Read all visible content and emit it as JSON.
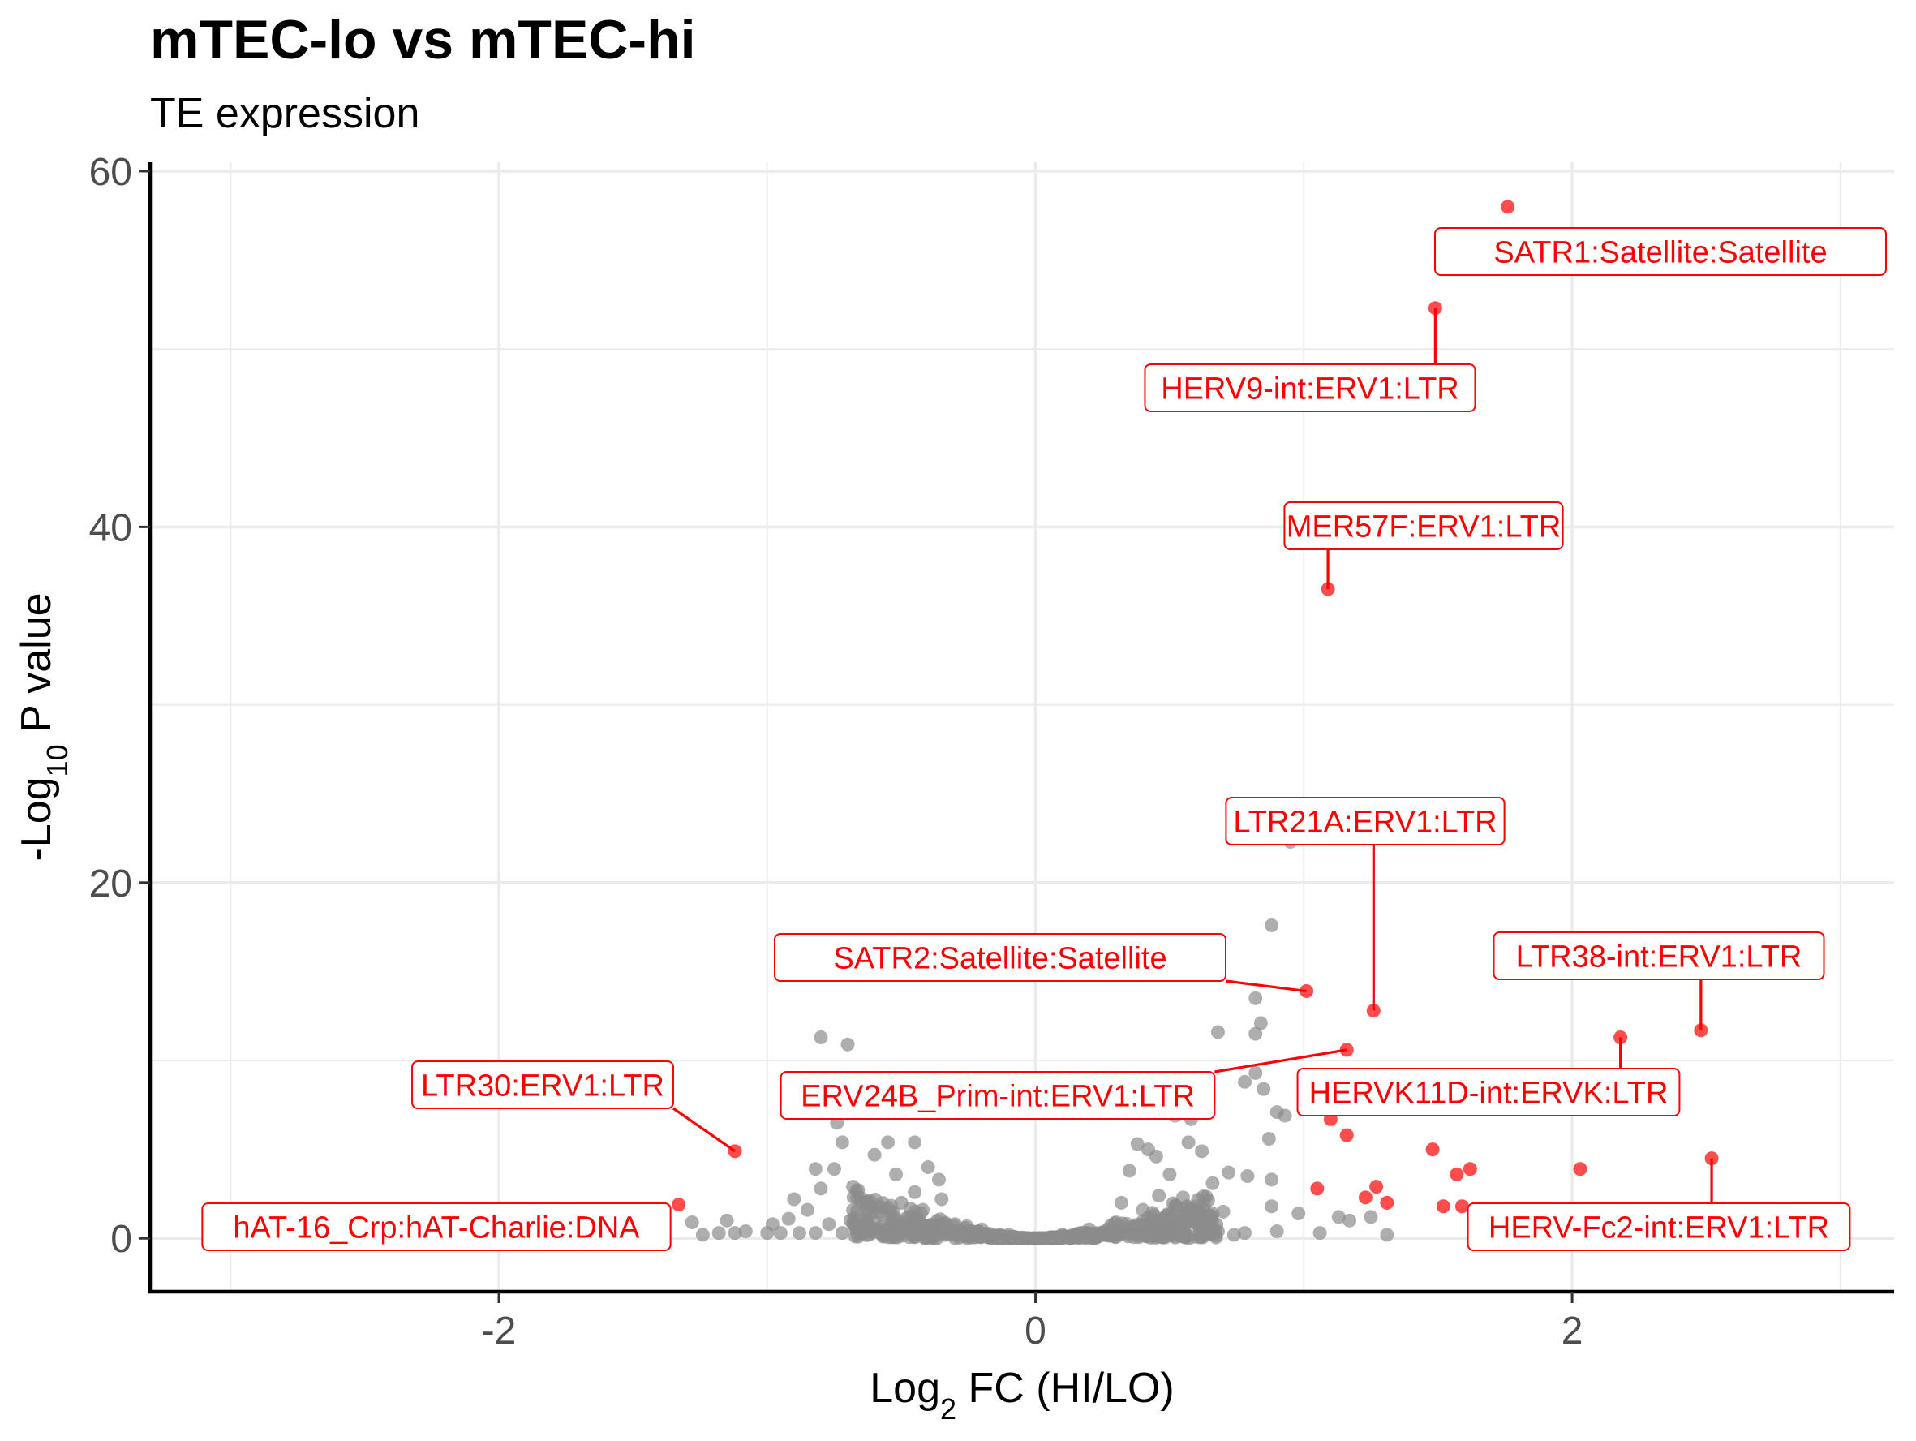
{
  "chart_data": {
    "type": "scatter",
    "title": "mTEC-lo vs mTEC-hi",
    "subtitle": "TE expression",
    "xlabel": {
      "prefix": "Log",
      "sub": "2",
      "suffix": " FC (HI/LO)"
    },
    "ylabel": {
      "prefix": "-Log",
      "sub": "10",
      "suffix": " P value"
    },
    "xlim": [
      -3.3,
      3.2
    ],
    "ylim": [
      -3,
      60.5
    ],
    "xticks": [
      -2,
      0,
      2
    ],
    "xtick_labels": [
      "-2",
      "0",
      "2"
    ],
    "yticks": [
      0,
      20,
      40,
      60
    ],
    "ytick_labels": [
      "0",
      "20",
      "40",
      "60"
    ],
    "grid": true,
    "colors": {
      "background": "#ffffff",
      "grid": "#ebebeb",
      "axis": "#000000",
      "nonsig_point": "#8c8c8c",
      "sig_point": "#ff0000",
      "label": "#ff0000",
      "tick_text": "#4d4d4d"
    },
    "labeled_points": [
      {
        "label": "SATR1:Satellite:Satellite",
        "x": 1.76,
        "y": 58.0
      },
      {
        "label": "HERV9-int:ERV1:LTR",
        "x": 1.49,
        "y": 52.3
      },
      {
        "label": "MER57F:ERV1:LTR",
        "x": 1.09,
        "y": 36.5
      },
      {
        "label": "LTR21A:ERV1:LTR",
        "x": 1.26,
        "y": 12.8
      },
      {
        "label": "SATR2:Satellite:Satellite",
        "x": 1.01,
        "y": 13.9
      },
      {
        "label": "LTR38-int:ERV1:LTR",
        "x": 2.48,
        "y": 11.7
      },
      {
        "label": "HERVK11D-int:ERVK:LTR",
        "x": 2.18,
        "y": 11.3
      },
      {
        "label": "ERV24B_Prim-int:ERV1:LTR",
        "x": 1.16,
        "y": 10.6
      },
      {
        "label": "LTR30:ERV1:LTR",
        "x": -1.12,
        "y": 4.9
      },
      {
        "label": "hAT-16_Crp:hAT-Charlie:DNA",
        "x": -1.33,
        "y": 1.9
      },
      {
        "label": "HERV-Fc2-int:ERV1:LTR",
        "x": 2.52,
        "y": 4.5
      }
    ],
    "other_significant_points": [
      [
        1.1,
        6.7
      ],
      [
        1.16,
        5.8
      ],
      [
        1.48,
        5.0
      ],
      [
        1.57,
        3.6
      ],
      [
        1.62,
        3.9
      ],
      [
        2.03,
        3.9
      ],
      [
        1.05,
        2.8
      ],
      [
        1.23,
        2.3
      ],
      [
        1.27,
        2.9
      ],
      [
        1.31,
        2.0
      ],
      [
        1.52,
        1.8
      ],
      [
        1.59,
        1.8
      ]
    ],
    "nonsignificant_points": [
      [
        0.95,
        22.3
      ],
      [
        0.88,
        17.6
      ],
      [
        0.82,
        13.5
      ],
      [
        0.84,
        12.1
      ],
      [
        0.82,
        11.5
      ],
      [
        0.68,
        11.6
      ],
      [
        0.82,
        9.3
      ],
      [
        0.85,
        8.4
      ],
      [
        0.78,
        8.8
      ],
      [
        0.9,
        7.1
      ],
      [
        0.93,
        6.9
      ],
      [
        0.87,
        5.6
      ],
      [
        -0.8,
        11.3
      ],
      [
        -0.7,
        10.9
      ],
      [
        -0.74,
        6.5
      ],
      [
        -0.72,
        5.4
      ],
      [
        -0.55,
        5.4
      ],
      [
        -0.45,
        5.4
      ],
      [
        -0.75,
        3.9
      ],
      [
        -0.82,
        3.9
      ],
      [
        -0.9,
        2.2
      ],
      [
        -0.85,
        1.6
      ],
      [
        -0.8,
        2.8
      ],
      [
        -0.68,
        2.9
      ],
      [
        -0.6,
        4.7
      ],
      [
        -0.52,
        3.6
      ],
      [
        -0.4,
        4.0
      ],
      [
        -0.36,
        3.3
      ],
      [
        -0.45,
        2.6
      ],
      [
        0.38,
        5.3
      ],
      [
        0.42,
        5.0
      ],
      [
        0.45,
        4.6
      ],
      [
        0.57,
        5.4
      ],
      [
        0.58,
        6.7
      ],
      [
        0.52,
        6.9
      ],
      [
        0.35,
        3.8
      ],
      [
        0.5,
        3.6
      ],
      [
        0.62,
        4.9
      ],
      [
        0.66,
        3.1
      ],
      [
        0.72,
        3.7
      ],
      [
        0.79,
        3.5
      ],
      [
        0.88,
        3.3
      ],
      [
        0.55,
        2.3
      ],
      [
        0.6,
        1.8
      ],
      [
        0.7,
        1.5
      ],
      [
        0.88,
        1.8
      ],
      [
        0.98,
        1.4
      ],
      [
        1.13,
        1.2
      ],
      [
        1.17,
        1.0
      ],
      [
        1.25,
        1.2
      ],
      [
        1.31,
        0.2
      ],
      [
        0.78,
        0.3
      ],
      [
        0.9,
        0.4
      ],
      [
        1.06,
        0.3
      ],
      [
        -1.28,
        0.9
      ],
      [
        -1.24,
        0.2
      ],
      [
        -1.18,
        0.3
      ],
      [
        -1.12,
        0.3
      ],
      [
        -1.15,
        1.0
      ],
      [
        -1.08,
        0.4
      ],
      [
        -1.0,
        0.3
      ],
      [
        -0.98,
        0.8
      ],
      [
        -0.95,
        0.3
      ],
      [
        -0.92,
        1.1
      ],
      [
        -0.88,
        0.3
      ],
      [
        -0.82,
        0.3
      ],
      [
        -0.77,
        0.8
      ],
      [
        -0.72,
        0.3
      ],
      [
        -0.69,
        1.0
      ],
      [
        -0.64,
        0.3
      ],
      [
        -0.6,
        0.9
      ],
      [
        -0.58,
        0.3
      ],
      [
        -0.3,
        0.8
      ],
      [
        -0.2,
        0.5
      ],
      [
        -0.1,
        0.2
      ],
      [
        0.1,
        0.2
      ],
      [
        0.2,
        0.5
      ],
      [
        0.3,
        0.9
      ],
      [
        0.4,
        0.3
      ],
      [
        0.48,
        0.3
      ],
      [
        0.55,
        0.2
      ],
      [
        0.62,
        0.3
      ],
      [
        0.68,
        0.4
      ],
      [
        0.74,
        0.2
      ],
      [
        -0.5,
        2.0
      ],
      [
        -0.42,
        1.6
      ],
      [
        -0.35,
        2.2
      ],
      [
        0.32,
        2.0
      ],
      [
        0.4,
        1.6
      ],
      [
        0.46,
        2.4
      ]
    ],
    "cloud": {
      "x_half_width": 0.68,
      "y_peak": 3.0,
      "count": 620,
      "seed": 7
    }
  }
}
